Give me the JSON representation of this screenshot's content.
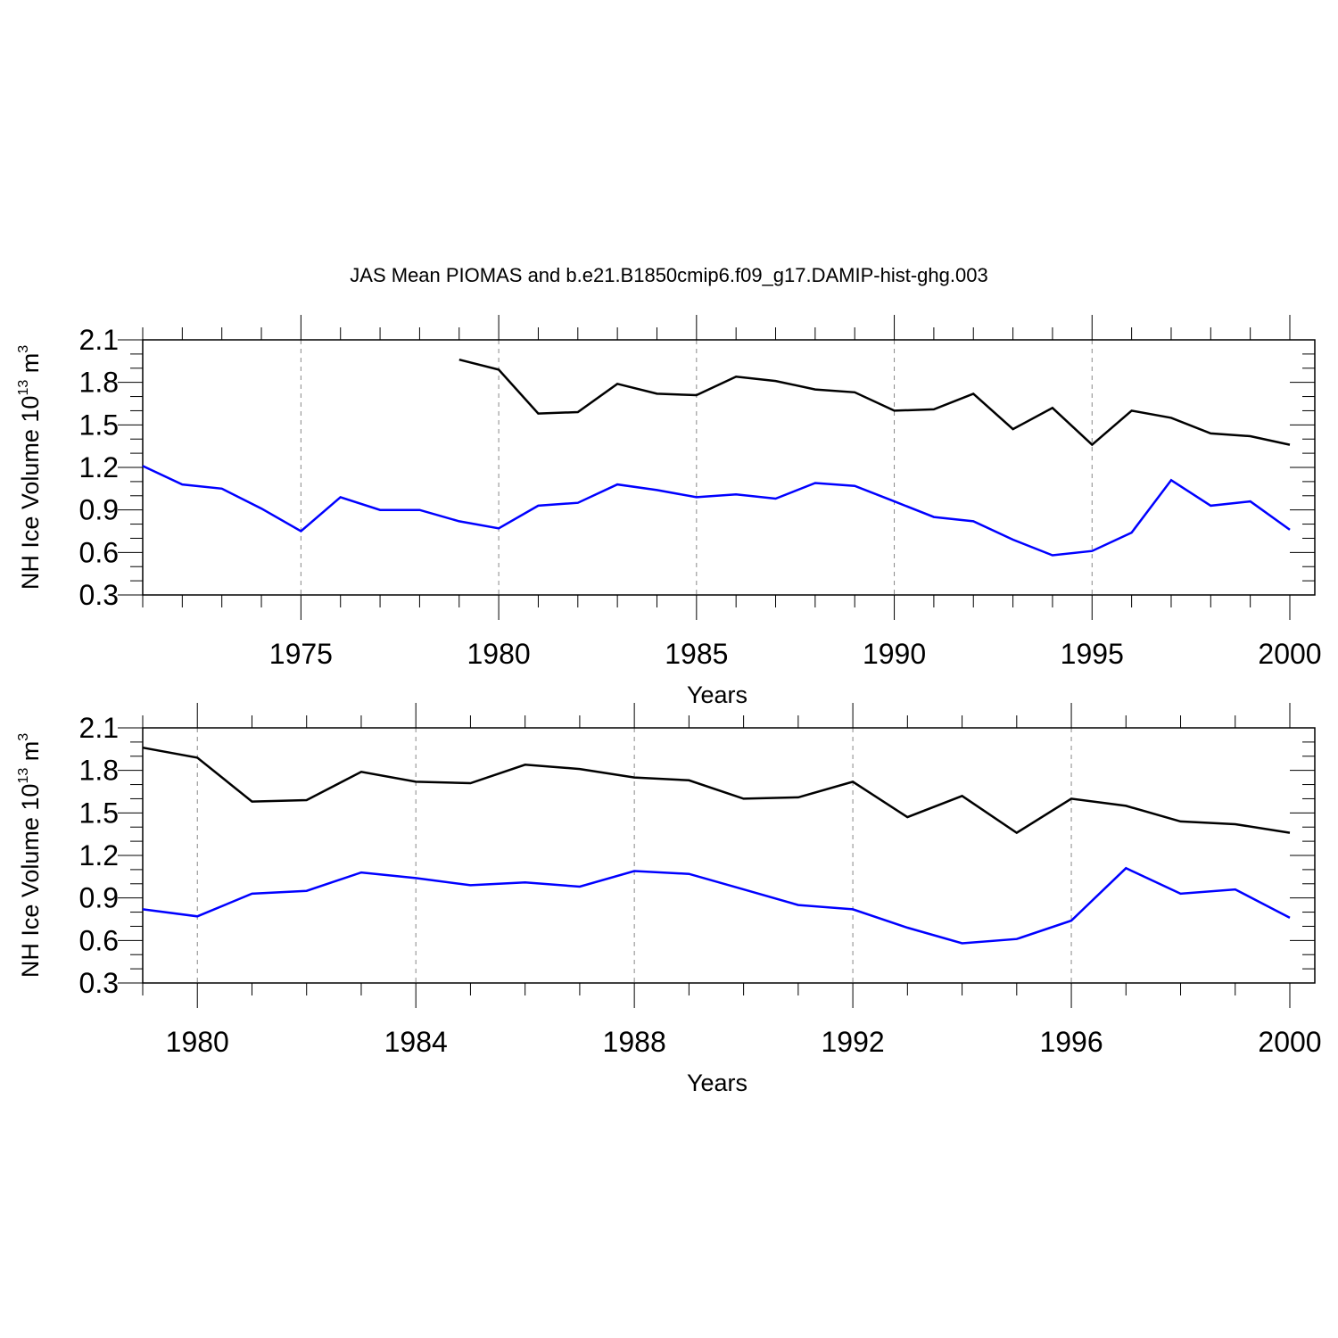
{
  "title": "JAS Mean PIOMAS and b.e21.B1850cmip6.f09_g17.DAMIP-hist-ghg.003",
  "colors": {
    "obs": "#000000",
    "model": "#0000ff",
    "grid": "#888888",
    "axis": "#000000"
  },
  "chart_data": [
    {
      "type": "line",
      "panel": "top",
      "xlabel": "Years",
      "ylabel": {
        "main": "NH Ice Volume 10",
        "exp1": "13",
        "unit": " m",
        "exp2": "3"
      },
      "xlim": [
        1971,
        2000
      ],
      "ylim": [
        0.3,
        2.1
      ],
      "yticks": [
        "0.3",
        "0.6",
        "0.9",
        "1.2",
        "1.5",
        "1.8",
        "2.1"
      ],
      "xticks": [
        "1975",
        "1980",
        "1985",
        "1990",
        "1995",
        "2000"
      ],
      "xgrid": [
        1975,
        1980,
        1985,
        1990,
        1995
      ],
      "series": [
        {
          "name": "PIOMAS",
          "color": "#000000",
          "x": [
            1979,
            1980,
            1981,
            1982,
            1983,
            1984,
            1985,
            1986,
            1987,
            1988,
            1989,
            1990,
            1991,
            1992,
            1993,
            1994,
            1995,
            1996,
            1997,
            1998,
            1999,
            2000
          ],
          "values": [
            1.96,
            1.89,
            1.58,
            1.59,
            1.79,
            1.72,
            1.71,
            1.84,
            1.81,
            1.75,
            1.73,
            1.6,
            1.61,
            1.72,
            1.47,
            1.62,
            1.36,
            1.6,
            1.55,
            1.44,
            1.42,
            1.36
          ]
        },
        {
          "name": "b.e21.B1850cmip6.f09_g17.DAMIP-hist-ghg.003",
          "color": "#0000ff",
          "x": [
            1971,
            1972,
            1973,
            1974,
            1975,
            1976,
            1977,
            1978,
            1979,
            1980,
            1981,
            1982,
            1983,
            1984,
            1985,
            1986,
            1987,
            1988,
            1989,
            1990,
            1991,
            1992,
            1993,
            1994,
            1995,
            1996,
            1997,
            1998,
            1999,
            2000
          ],
          "values": [
            1.21,
            1.08,
            1.05,
            0.91,
            0.75,
            0.99,
            0.9,
            0.9,
            0.82,
            0.77,
            0.93,
            0.95,
            1.08,
            1.04,
            0.99,
            1.01,
            0.98,
            1.09,
            1.07,
            0.96,
            0.85,
            0.82,
            0.69,
            0.58,
            0.61,
            0.74,
            1.11,
            0.93,
            0.96,
            0.76
          ]
        }
      ]
    },
    {
      "type": "line",
      "panel": "bottom",
      "xlabel": "Years",
      "ylabel": {
        "main": "NH Ice Volume 10",
        "exp1": "13",
        "unit": " m",
        "exp2": "3"
      },
      "xlim": [
        1979,
        2000
      ],
      "ylim": [
        0.3,
        2.1
      ],
      "yticks": [
        "0.3",
        "0.6",
        "0.9",
        "1.2",
        "1.5",
        "1.8",
        "2.1"
      ],
      "xticks": [
        "1980",
        "1984",
        "1988",
        "1992",
        "1996",
        "2000"
      ],
      "xgrid": [
        1980,
        1984,
        1988,
        1992,
        1996
      ],
      "series": [
        {
          "name": "PIOMAS",
          "color": "#000000",
          "x": [
            1979,
            1980,
            1981,
            1982,
            1983,
            1984,
            1985,
            1986,
            1987,
            1988,
            1989,
            1990,
            1991,
            1992,
            1993,
            1994,
            1995,
            1996,
            1997,
            1998,
            1999,
            2000
          ],
          "values": [
            1.96,
            1.89,
            1.58,
            1.59,
            1.79,
            1.72,
            1.71,
            1.84,
            1.81,
            1.75,
            1.73,
            1.6,
            1.61,
            1.72,
            1.47,
            1.62,
            1.36,
            1.6,
            1.55,
            1.44,
            1.42,
            1.36
          ]
        },
        {
          "name": "b.e21.B1850cmip6.f09_g17.DAMIP-hist-ghg.003",
          "color": "#0000ff",
          "x": [
            1979,
            1980,
            1981,
            1982,
            1983,
            1984,
            1985,
            1986,
            1987,
            1988,
            1989,
            1990,
            1991,
            1992,
            1993,
            1994,
            1995,
            1996,
            1997,
            1998,
            1999,
            2000
          ],
          "values": [
            0.82,
            0.77,
            0.93,
            0.95,
            1.08,
            1.04,
            0.99,
            1.01,
            0.98,
            1.09,
            1.07,
            0.96,
            0.85,
            0.82,
            0.69,
            0.58,
            0.61,
            0.74,
            1.11,
            0.93,
            0.96,
            0.76
          ]
        }
      ]
    }
  ]
}
